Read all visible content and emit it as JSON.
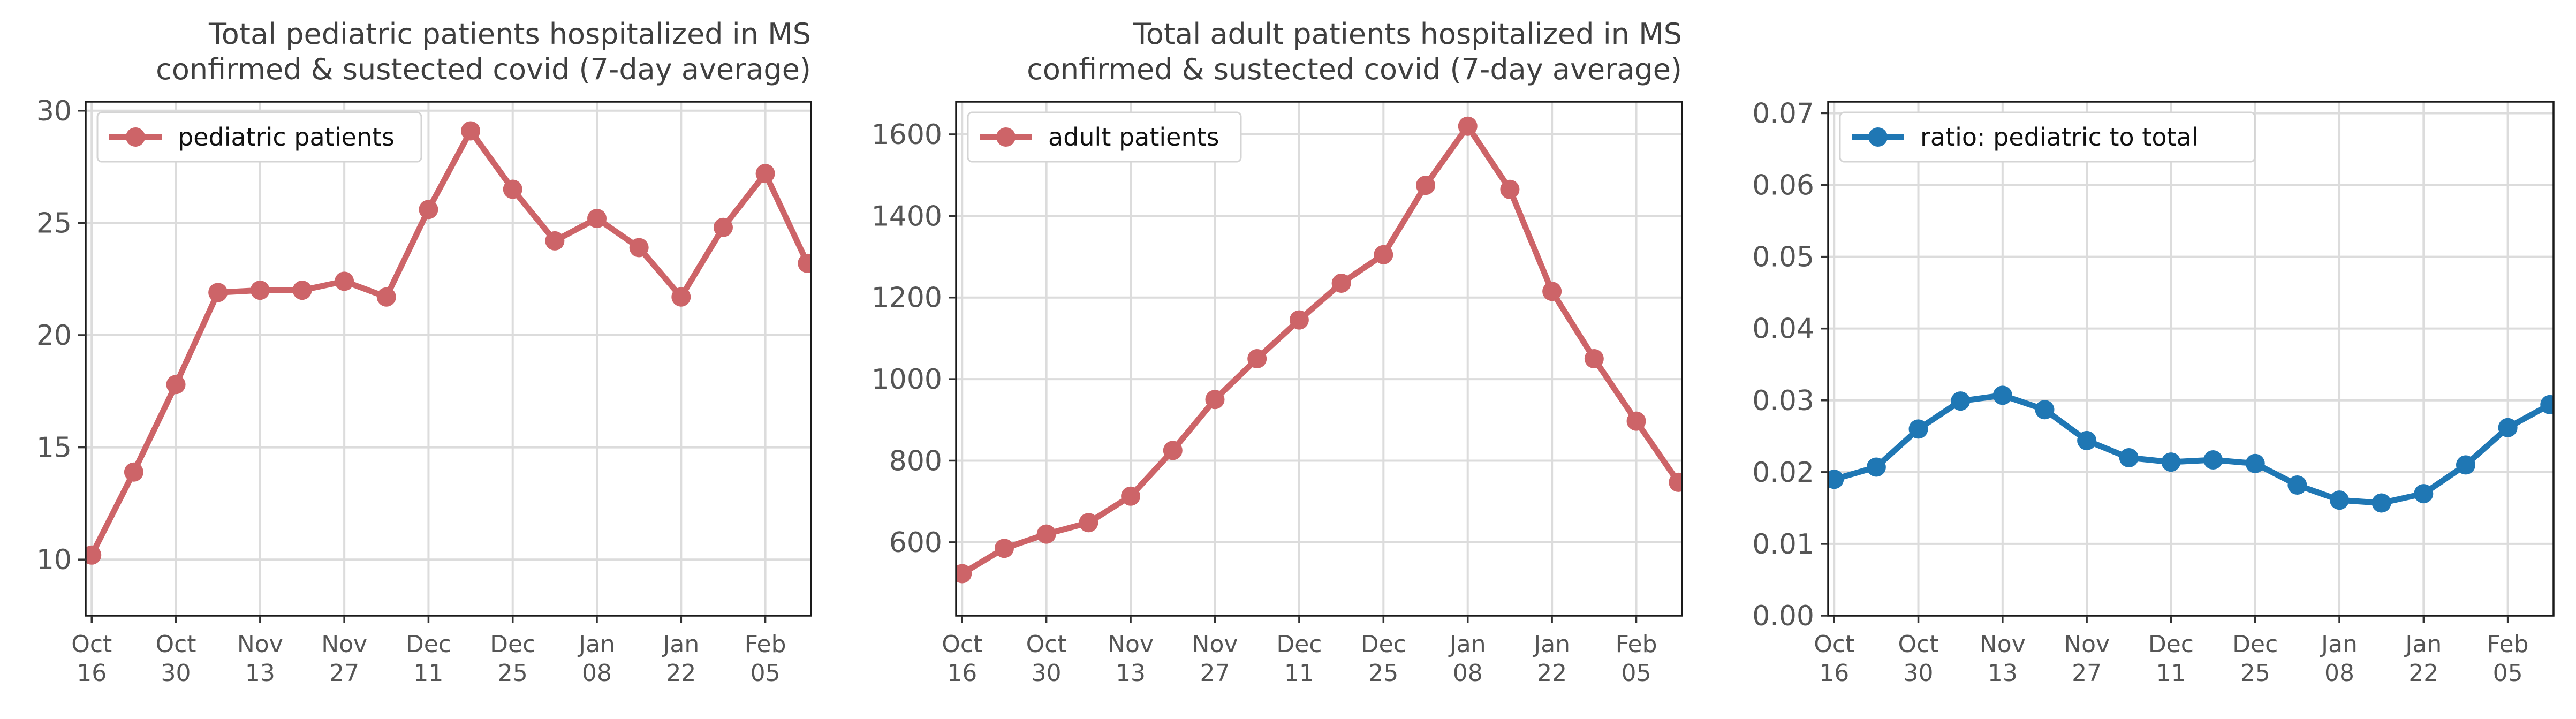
{
  "chart_data": [
    {
      "type": "line",
      "title": [
        "Total pediatric patients hospitalized in MS",
        "confirmed & sustected covid (7-day average)"
      ],
      "x": [
        "2020-10-16",
        "2020-10-23",
        "2020-10-30",
        "2020-11-06",
        "2020-11-13",
        "2020-11-20",
        "2020-11-27",
        "2020-12-04",
        "2020-12-11",
        "2020-12-18",
        "2020-12-25",
        "2021-01-01",
        "2021-01-08",
        "2021-01-15",
        "2021-01-22",
        "2021-01-29",
        "2021-02-05",
        "2021-02-12"
      ],
      "series": [
        {
          "name": "pediatric patients",
          "color": "#cd6468",
          "values": [
            10.2,
            13.9,
            17.8,
            21.9,
            22.0,
            22.0,
            22.4,
            21.7,
            25.6,
            29.1,
            26.5,
            24.2,
            25.2,
            23.9,
            21.7,
            24.8,
            27.2,
            23.2
          ]
        }
      ],
      "ylim": [
        7.5,
        30.4
      ],
      "yticks": [
        10,
        15,
        20,
        25,
        30
      ],
      "xticks": [
        "Oct\n16",
        "Oct\n30",
        "Nov\n13",
        "Nov\n27",
        "Dec\n11",
        "Dec\n25",
        "Jan\n08",
        "Jan\n22",
        "Feb\n05"
      ],
      "grid": true,
      "legend": "upper left"
    },
    {
      "type": "line",
      "title": [
        "Total adult patients hospitalized in MS",
        "confirmed & sustected covid (7-day average)"
      ],
      "x": [
        "2020-10-16",
        "2020-10-23",
        "2020-10-30",
        "2020-11-06",
        "2020-11-13",
        "2020-11-20",
        "2020-11-27",
        "2020-12-04",
        "2020-12-11",
        "2020-12-18",
        "2020-12-25",
        "2021-01-01",
        "2021-01-08",
        "2021-01-15",
        "2021-01-22",
        "2021-01-29",
        "2021-02-05",
        "2021-02-12"
      ],
      "series": [
        {
          "name": "adult patients",
          "color": "#cd6468",
          "values": [
            523,
            585,
            620,
            648,
            713,
            825,
            950,
            1050,
            1145,
            1235,
            1305,
            1475,
            1620,
            1465,
            1215,
            1050,
            897,
            747
          ]
        }
      ],
      "ylim": [
        420,
        1680
      ],
      "yticks": [
        600,
        800,
        1000,
        1200,
        1400,
        1600
      ],
      "xticks": [
        "Oct\n16",
        "Oct\n30",
        "Nov\n13",
        "Nov\n27",
        "Dec\n11",
        "Dec\n25",
        "Jan\n08",
        "Jan\n22",
        "Feb\n05"
      ],
      "grid": true,
      "legend": "upper left"
    },
    {
      "type": "line",
      "title": [],
      "x": [
        "2020-10-16",
        "2020-10-23",
        "2020-10-30",
        "2020-11-06",
        "2020-11-13",
        "2020-11-20",
        "2020-11-27",
        "2020-12-04",
        "2020-12-11",
        "2020-12-18",
        "2020-12-25",
        "2021-01-01",
        "2021-01-08",
        "2021-01-15",
        "2021-01-22",
        "2021-01-29",
        "2021-02-05",
        "2021-02-12"
      ],
      "series": [
        {
          "name": "ratio: pediatric to total",
          "color": "#1f77b4",
          "values": [
            0.019,
            0.0207,
            0.026,
            0.0299,
            0.0307,
            0.0287,
            0.0244,
            0.022,
            0.0214,
            0.0217,
            0.0212,
            0.0182,
            0.0161,
            0.0157,
            0.017,
            0.021,
            0.0262,
            0.0294
          ]
        }
      ],
      "ylim": [
        0.0,
        0.0716
      ],
      "yticks": [
        "0.00",
        "0.01",
        "0.02",
        "0.03",
        "0.04",
        "0.05",
        "0.06",
        "0.07"
      ],
      "xticks": [
        "Oct\n16",
        "Oct\n30",
        "Nov\n13",
        "Nov\n27",
        "Dec\n11",
        "Dec\n25",
        "Jan\n08",
        "Jan\n22",
        "Feb\n05"
      ],
      "grid": true,
      "legend": "upper left"
    }
  ]
}
